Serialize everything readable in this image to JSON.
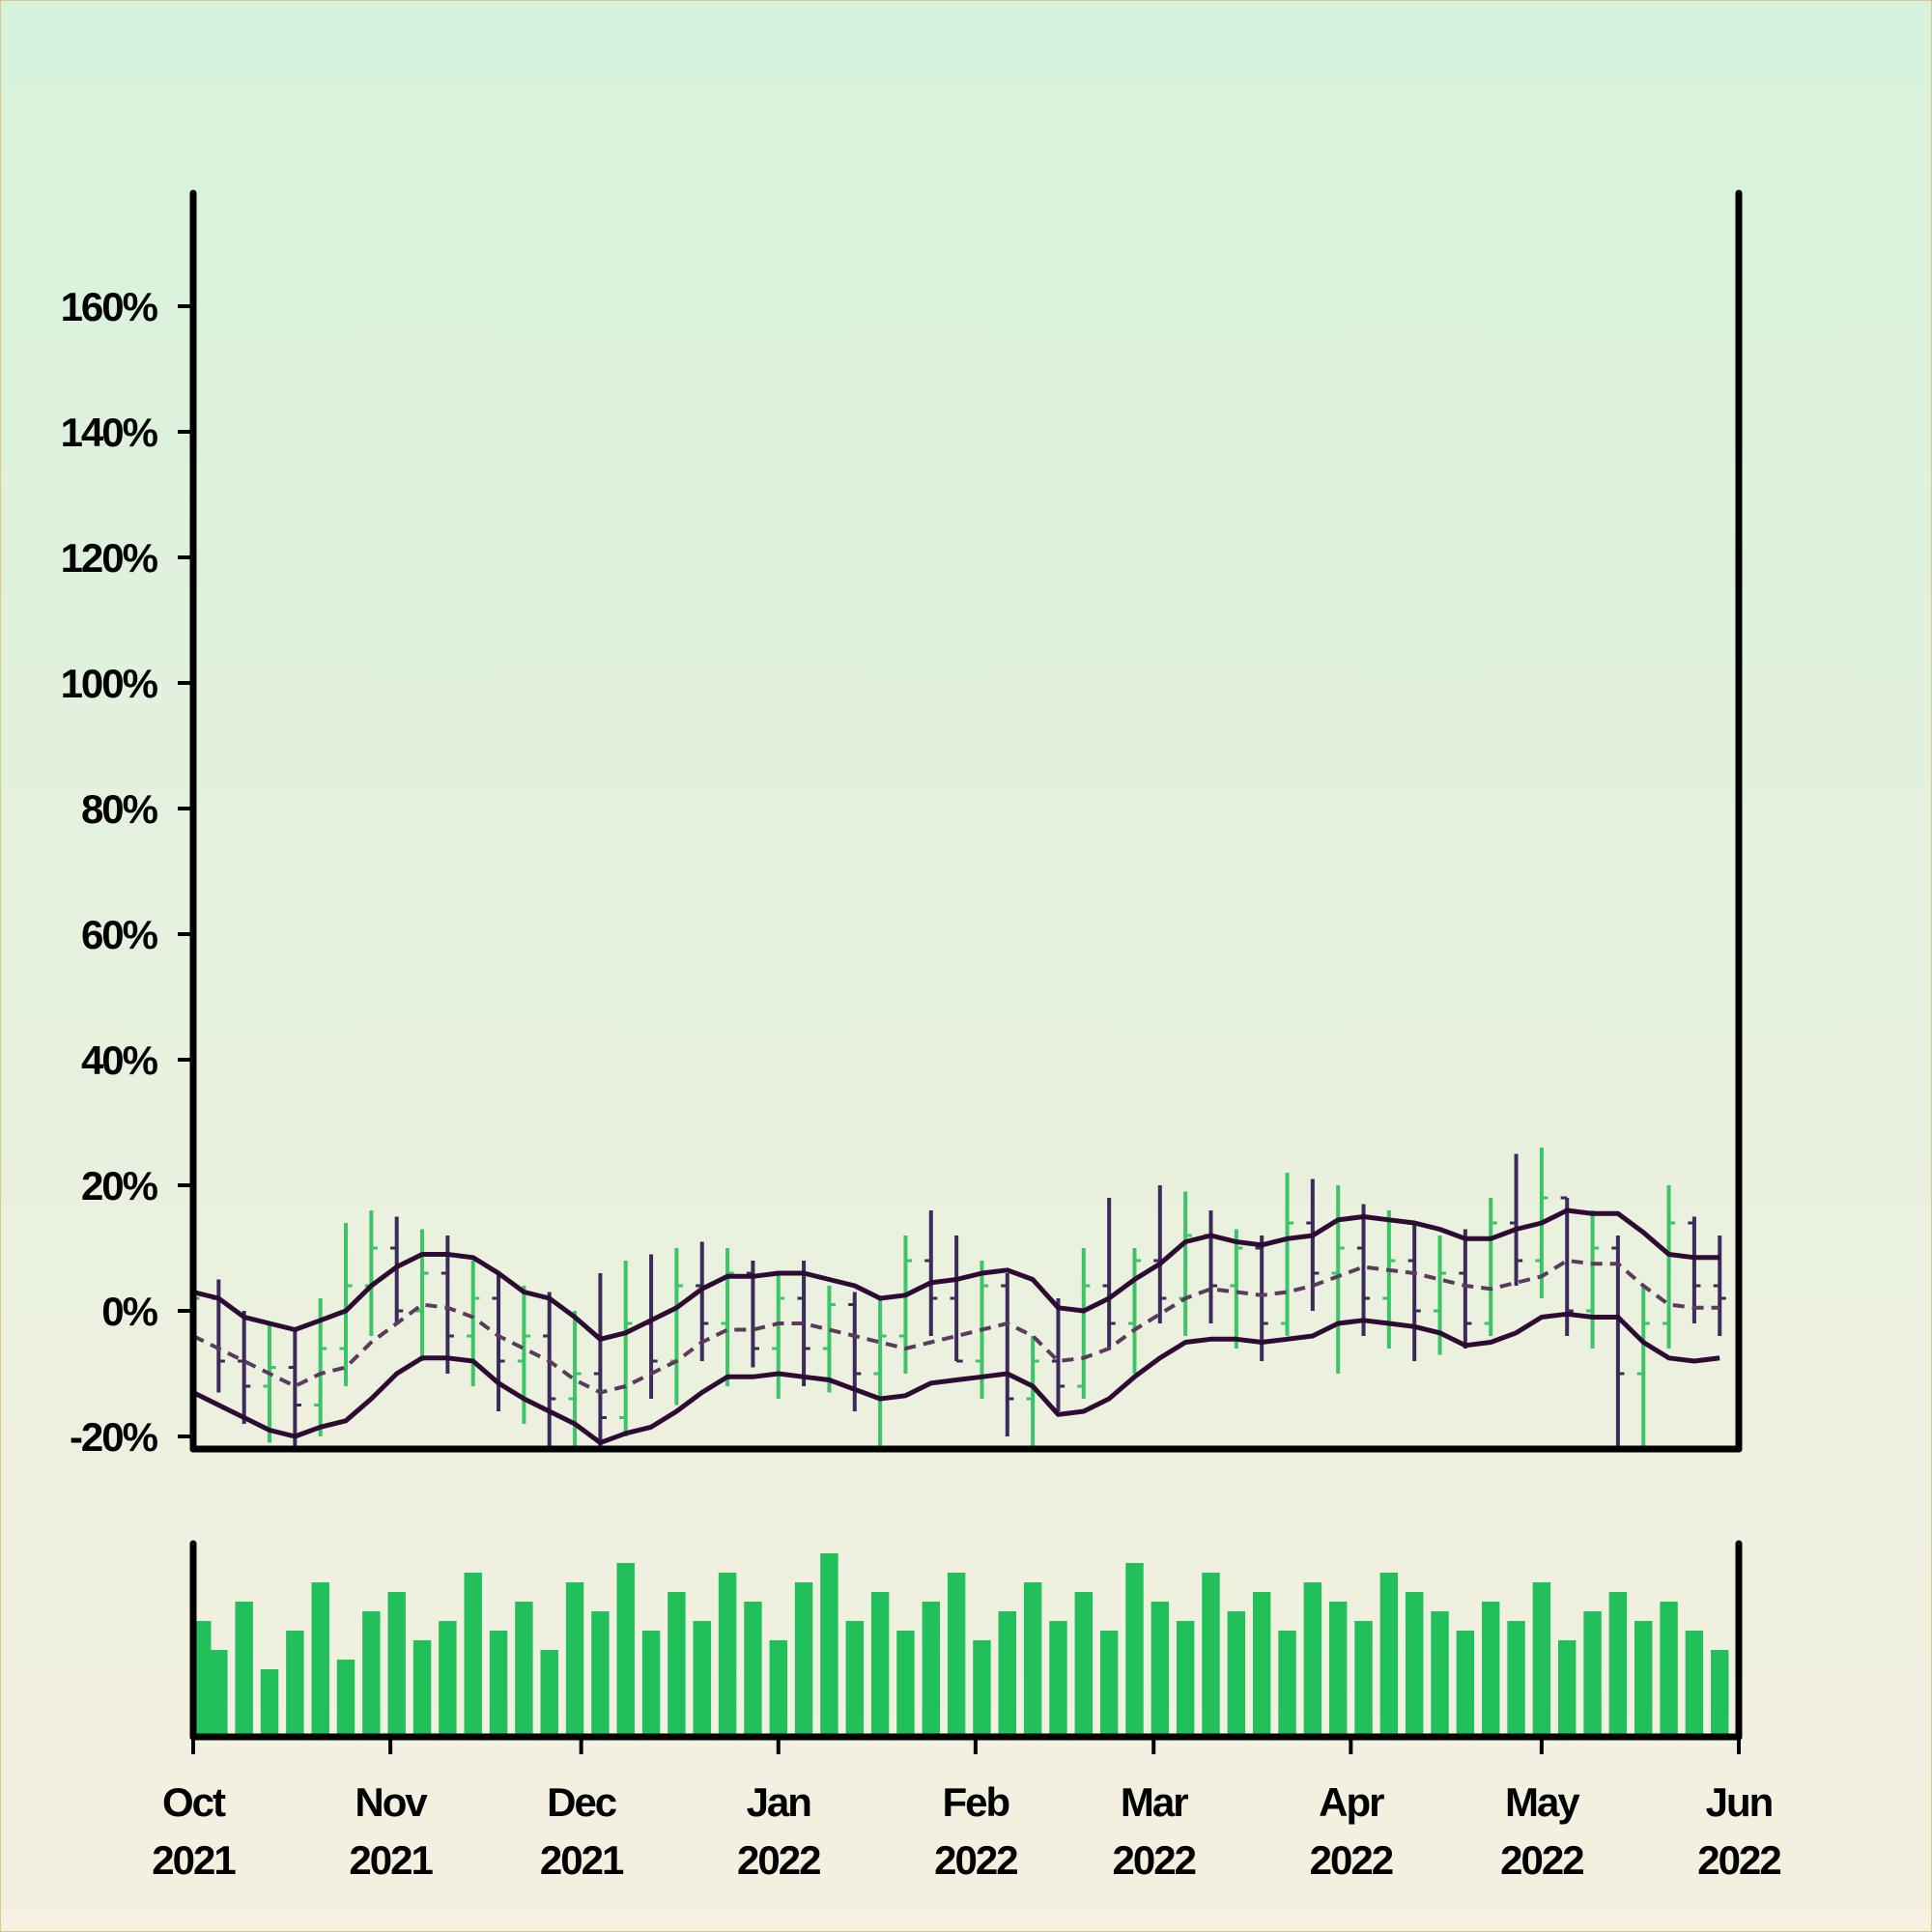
{
  "chart_data": {
    "type": "ohlc",
    "x": [
      0,
      4,
      8,
      12,
      16,
      20,
      24,
      28,
      32,
      36,
      40,
      44,
      48,
      52,
      56,
      60,
      64,
      68,
      72,
      76,
      80,
      84,
      88,
      92,
      96,
      100,
      104,
      108,
      112,
      116,
      120,
      124,
      128,
      132,
      136,
      140,
      144,
      148,
      152,
      156,
      160,
      164,
      168,
      172,
      176,
      180,
      184,
      188,
      192,
      196,
      200,
      204,
      208,
      212,
      216,
      220,
      224,
      228,
      232,
      236,
      240
    ],
    "open": [
      -6,
      2,
      -8,
      -12,
      -9,
      -15,
      -6,
      4,
      10,
      0,
      6,
      -4,
      2,
      -8,
      -4,
      -14,
      -10,
      -17,
      -2,
      -8,
      4,
      -2,
      6,
      -6,
      2,
      -6,
      1,
      -10,
      -4,
      8,
      2,
      -8,
      4,
      -14,
      -8,
      -12,
      4,
      -2,
      8,
      2,
      12,
      4,
      10,
      -2,
      14,
      6,
      10,
      2,
      8,
      0,
      6,
      -2,
      14,
      8,
      18,
      0,
      10,
      -10,
      -2,
      14,
      4
    ],
    "high": [
      6,
      5,
      0,
      -2,
      -3,
      2,
      14,
      16,
      15,
      13,
      12,
      8,
      6,
      4,
      3,
      0,
      6,
      8,
      9,
      10,
      11,
      10,
      8,
      6,
      8,
      4,
      3,
      2,
      12,
      16,
      12,
      8,
      6,
      -4,
      2,
      10,
      18,
      10,
      20,
      19,
      16,
      13,
      12,
      22,
      21,
      20,
      17,
      16,
      14,
      12,
      13,
      18,
      25,
      26,
      18,
      16,
      12,
      4,
      20,
      15,
      12
    ],
    "low": [
      -17,
      -13,
      -18,
      -21,
      -24,
      -20,
      -12,
      -4,
      -2,
      -8,
      -10,
      -12,
      -16,
      -18,
      -22,
      -24,
      -22,
      -20,
      -14,
      -15,
      -8,
      -12,
      -9,
      -14,
      -12,
      -13,
      -16,
      -24,
      -10,
      -4,
      -8,
      -14,
      -20,
      -24,
      -16,
      -14,
      -6,
      -10,
      -2,
      -4,
      -2,
      -6,
      -8,
      -4,
      0,
      -10,
      -4,
      -6,
      -8,
      -7,
      -6,
      -4,
      4,
      2,
      -4,
      -6,
      -22,
      -22,
      -6,
      -2,
      -4
    ],
    "close": [
      2,
      -8,
      -12,
      -9,
      -15,
      -6,
      4,
      10,
      0,
      6,
      -4,
      2,
      -8,
      -4,
      -14,
      -10,
      -17,
      -2,
      -8,
      4,
      -2,
      6,
      -6,
      2,
      -6,
      1,
      -10,
      -4,
      8,
      2,
      -8,
      4,
      -14,
      -8,
      -12,
      4,
      -2,
      8,
      2,
      12,
      4,
      10,
      -2,
      14,
      6,
      10,
      2,
      8,
      0,
      6,
      -2,
      14,
      8,
      18,
      0,
      10,
      -10,
      -2,
      14,
      4,
      2
    ],
    "up_color": "#3cc466",
    "down_color": "#3b2a5a",
    "bands": {
      "upper": [
        3,
        2,
        -1,
        -2,
        -3,
        -1.5,
        0,
        4,
        7,
        9,
        9,
        8.5,
        6,
        3,
        2,
        -1,
        -4.5,
        -3.5,
        -1.5,
        0.5,
        3.5,
        5.5,
        5.5,
        6,
        6,
        5,
        4,
        2,
        2.5,
        4.5,
        5,
        6,
        6.5,
        5,
        0.5,
        0,
        2,
        5,
        7.5,
        11,
        12,
        11,
        10.5,
        11.5,
        12,
        14.5,
        15,
        14.5,
        14,
        13,
        11.5,
        11.5,
        13,
        14,
        16,
        15.5,
        15.5,
        12.5,
        9,
        8.5,
        8.5
      ],
      "middle": [
        -4,
        -6,
        -8,
        -10,
        -12,
        -10,
        -9,
        -5,
        -2,
        1,
        0.5,
        -1,
        -4,
        -6,
        -8,
        -11,
        -13,
        -12,
        -10,
        -8,
        -5,
        -3,
        -3,
        -2,
        -2,
        -3,
        -4,
        -5,
        -6,
        -5,
        -4,
        -3,
        -2,
        -4,
        -8,
        -7.5,
        -6,
        -3,
        -0.5,
        2,
        3.5,
        3,
        2.5,
        3,
        4,
        5.5,
        7,
        6.5,
        6,
        5,
        4,
        3.5,
        4.5,
        5.5,
        8,
        7.5,
        7.5,
        4,
        1,
        0.5,
        0.5
      ],
      "lower": [
        -13,
        -15,
        -17,
        -19,
        -20,
        -18.5,
        -17.5,
        -14,
        -10,
        -7.5,
        -7.5,
        -8,
        -11.5,
        -14,
        -16,
        -18,
        -21,
        -19.5,
        -18.5,
        -16,
        -13,
        -10.5,
        -10.5,
        -10,
        -10.5,
        -11,
        -12.5,
        -14,
        -13.5,
        -11.5,
        -11,
        -10.5,
        -10,
        -12,
        -16.5,
        -16,
        -14,
        -10.5,
        -7.5,
        -5,
        -4.5,
        -4.5,
        -5,
        -4.5,
        -4,
        -2,
        -1.5,
        -2,
        -2.5,
        -3.5,
        -5.5,
        -5,
        -3.5,
        -1,
        -0.5,
        -1,
        -1,
        -5,
        -7.5,
        -8,
        -7.5
      ],
      "color": "#2e0b33",
      "middle_color": "#5b3a5c"
    },
    "volume": {
      "values": [
        60,
        45,
        70,
        35,
        55,
        80,
        40,
        65,
        75,
        50,
        60,
        85,
        55,
        70,
        45,
        80,
        65,
        90,
        55,
        75,
        60,
        85,
        70,
        50,
        80,
        95,
        60,
        75,
        55,
        70,
        85,
        50,
        65,
        80,
        60,
        75,
        55,
        90,
        70,
        60,
        85,
        65,
        75,
        55,
        80,
        70,
        60,
        85,
        75,
        65,
        55,
        70,
        60,
        80,
        50,
        65,
        75,
        60,
        70,
        55,
        45
      ],
      "color": "#22c05a",
      "ylim": [
        0,
        100
      ]
    },
    "xlim": [
      0,
      243
    ],
    "xticks": [
      {
        "value": 0,
        "label": "Oct 2021"
      },
      {
        "value": 31,
        "label": "Nov 2021"
      },
      {
        "value": 61,
        "label": "Dec 2021"
      },
      {
        "value": 92,
        "label": "Jan 2022"
      },
      {
        "value": 123,
        "label": "Feb 2022"
      },
      {
        "value": 151,
        "label": "Mar 2022"
      },
      {
        "value": 182,
        "label": "Apr 2022"
      },
      {
        "value": 212,
        "label": "May 2022"
      },
      {
        "value": 243,
        "label": "Jun 2022"
      }
    ],
    "ylim": [
      -22,
      178
    ],
    "yticks": [
      {
        "value": -20,
        "label": "-20%"
      },
      {
        "value": 0,
        "label": "0%"
      },
      {
        "value": 20,
        "label": "20%"
      },
      {
        "value": 40,
        "label": "40%"
      },
      {
        "value": 60,
        "label": "60%"
      },
      {
        "value": 80,
        "label": "80%"
      },
      {
        "value": 100,
        "label": "100%"
      },
      {
        "value": 120,
        "label": "120%"
      },
      {
        "value": 140,
        "label": "140%"
      },
      {
        "value": 160,
        "label": "160%"
      }
    ]
  }
}
